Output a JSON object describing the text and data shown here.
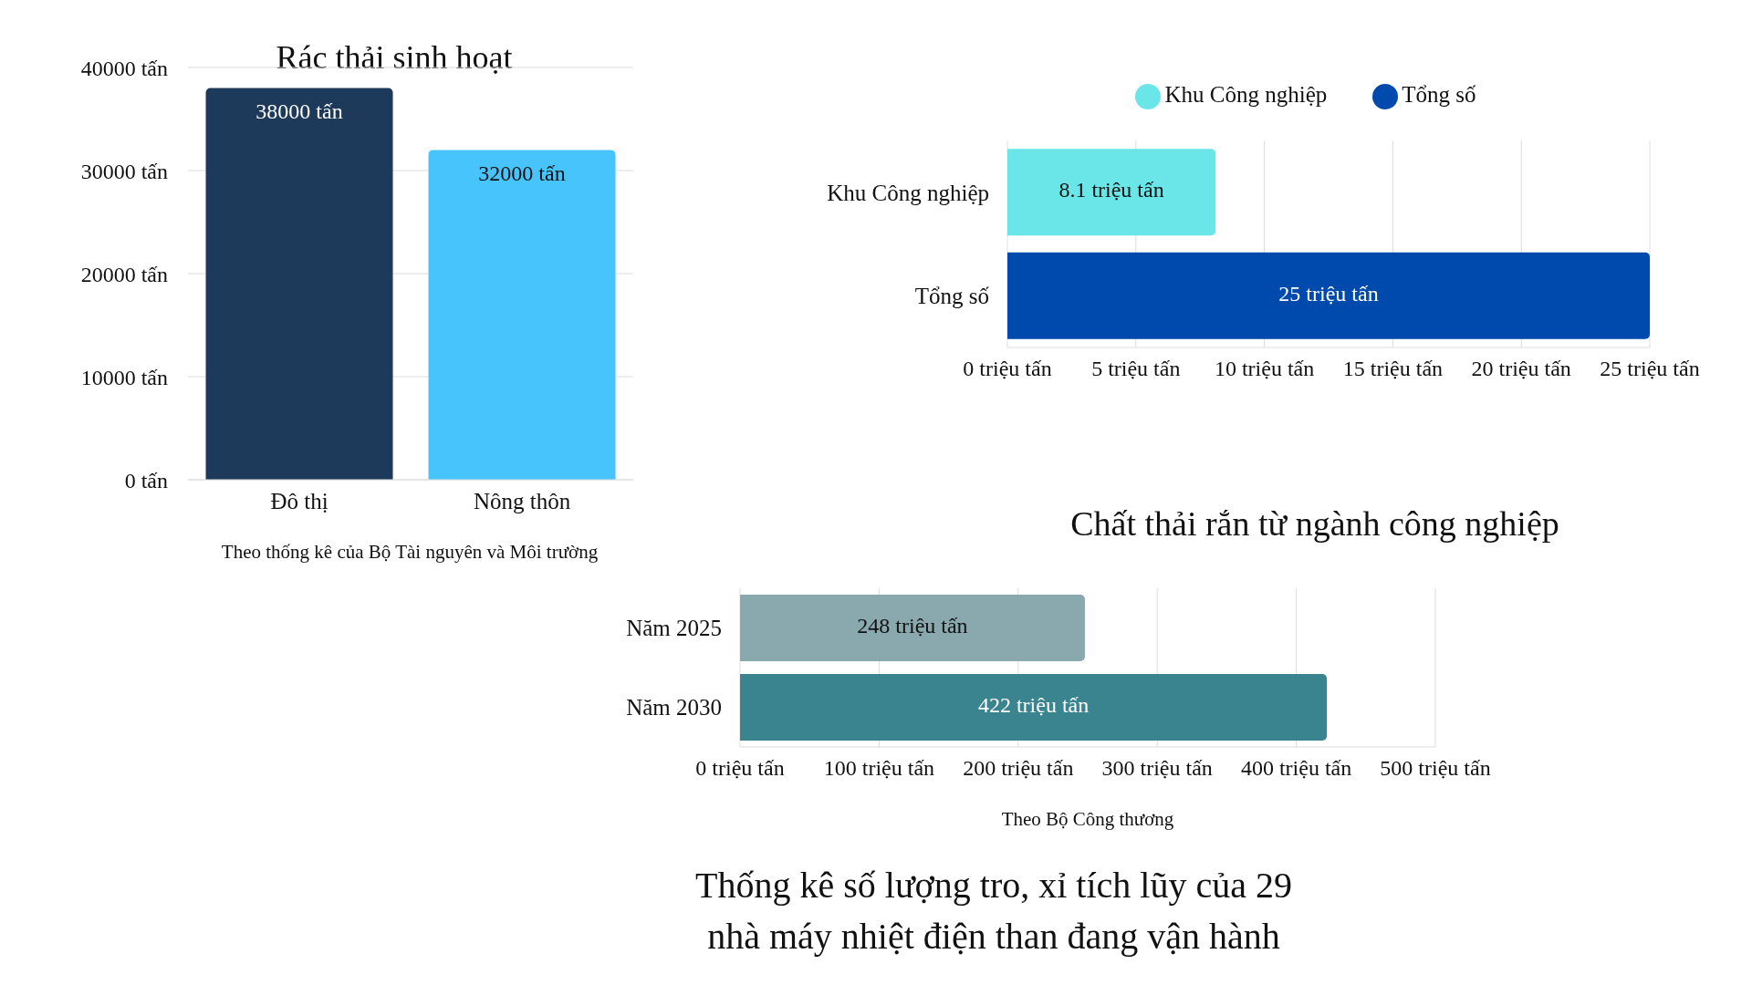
{
  "chart_data": [
    {
      "type": "bar",
      "title": "Rác thải sinh hoạt",
      "categories": [
        "Đô thị",
        "Nông thôn"
      ],
      "values": [
        38000,
        32000
      ],
      "colors": [
        "#1e3a5a",
        "#48c4fc"
      ],
      "value_labels": [
        "38000 tấn",
        "32000 tấn"
      ],
      "ylim": [
        0,
        40000
      ],
      "yticks": [
        {
          "value": 0,
          "label": "0 tấn"
        },
        {
          "value": 10000,
          "label": "10000 tấn"
        },
        {
          "value": 20000,
          "label": "20000 tấn"
        },
        {
          "value": 30000,
          "label": "30000 tấn"
        },
        {
          "value": 40000,
          "label": "40000 tấn"
        }
      ],
      "grid": "y",
      "annotations": [
        "Theo thống kê của Bộ Tài nguyên và Môi trường"
      ]
    },
    {
      "type": "bar",
      "orientation": "horizontal",
      "stacked": true,
      "title": "Chất thải rắn từ ngành công nghiệp",
      "categories": [
        "Khu Công nghiệp",
        "Tổng số"
      ],
      "series": [
        {
          "name": "Khu Công nghiệp",
          "color": "#6ae6e8",
          "values": [
            8.1,
            null
          ],
          "value_labels": [
            "8.1 triệu tấn",
            null
          ]
        },
        {
          "name": "Tổng số",
          "color": "#004aad",
          "values": [
            null,
            25
          ],
          "value_labels": [
            null,
            "25 triệu tấn"
          ]
        }
      ],
      "xlim": [
        0,
        25
      ],
      "xticks": [
        {
          "value": 0,
          "label": "0 triệu tấn"
        },
        {
          "value": 5,
          "label": "5 triệu tấn"
        },
        {
          "value": 10,
          "label": "10 triệu tấn"
        },
        {
          "value": 15,
          "label": "15 triệu tấn"
        },
        {
          "value": 20,
          "label": "20 triệu tấn"
        },
        {
          "value": 25,
          "label": "25 triệu tấn"
        }
      ],
      "grid": "x",
      "legend": "top"
    },
    {
      "type": "bar",
      "orientation": "horizontal",
      "title": "Thống kê số lượng tro, xỉ tích lũy của 29 nhà máy nhiệt điện than đang vận hành",
      "categories": [
        "Năm 2025",
        "Năm 2030"
      ],
      "values": [
        248,
        422
      ],
      "colors": [
        "#8aa9ae",
        "#3a8490"
      ],
      "value_labels": [
        "248 triệu tấn",
        "422 triệu tấn"
      ],
      "xlim": [
        0,
        500
      ],
      "xticks": [
        {
          "value": 0,
          "label": "0 triệu tấn"
        },
        {
          "value": 100,
          "label": "100 triệu tấn"
        },
        {
          "value": 200,
          "label": "200 triệu tấn"
        },
        {
          "value": 300,
          "label": "300 triệu tấn"
        },
        {
          "value": 400,
          "label": "400 triệu tấn"
        },
        {
          "value": 500,
          "label": "500 triệu tấn"
        }
      ],
      "grid": "x",
      "annotations": [
        "Theo Bộ Công thương"
      ]
    }
  ]
}
